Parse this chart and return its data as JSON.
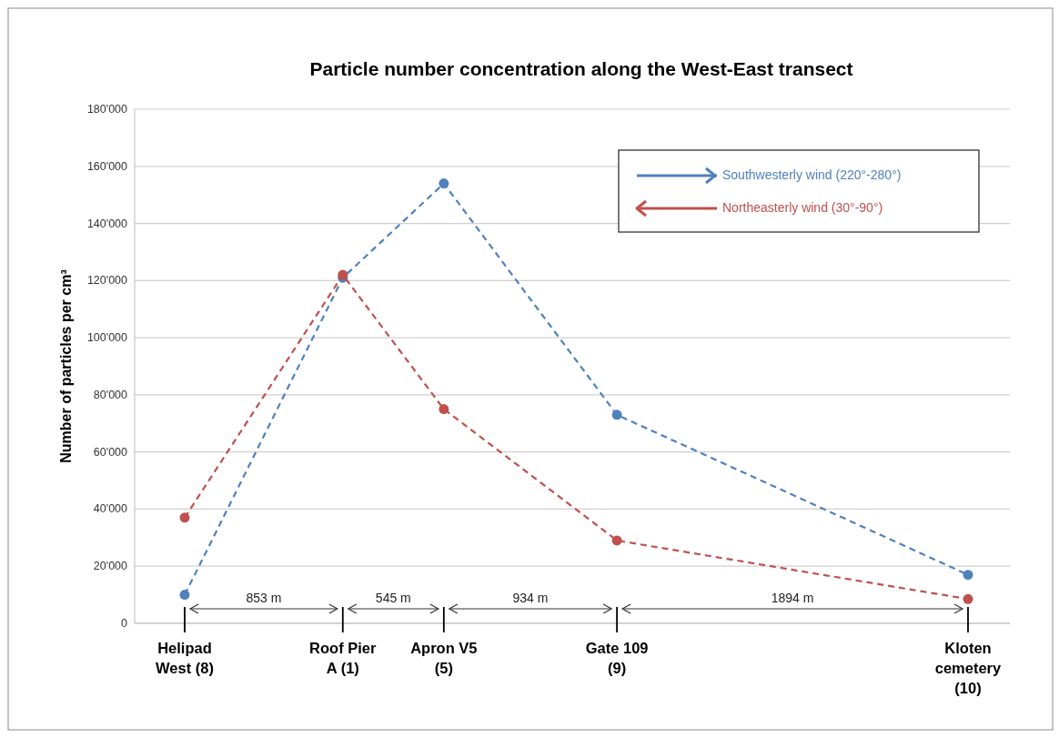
{
  "chart_data": {
    "type": "line",
    "title": "Particle number concentration along the West-East transect",
    "ylabel": "Number of particles per cm³",
    "categories": [
      "Helipad West (8)",
      "Roof Pier A (1)",
      "Apron V5 (5)",
      "Gate 109 (9)",
      "Kloten cemetery (10)"
    ],
    "ylim": [
      0,
      180000
    ],
    "yticks": [
      0,
      {
        "value": 20000,
        "label": "20'000"
      },
      {
        "value": 40000,
        "label": "40'000"
      },
      {
        "value": 60000,
        "label": "60'000"
      },
      {
        "value": 80000,
        "label": "80'000"
      },
      {
        "value": 100000,
        "label": "100'000"
      },
      {
        "value": 120000,
        "label": "120'000"
      },
      {
        "value": 140000,
        "label": "140'000"
      },
      {
        "value": 160000,
        "label": "160'000"
      },
      {
        "value": 180000,
        "label": "180'000"
      }
    ],
    "series": [
      {
        "name": "Southwesterly wind (220°-280°)",
        "color": "#4f81bd",
        "values": [
          10000,
          121000,
          154000,
          73000,
          17000
        ]
      },
      {
        "name": "Northeasterly wind (30°-90°)",
        "color": "#c0504d",
        "values": [
          37000,
          122000,
          75000,
          29000,
          8500
        ]
      }
    ],
    "annotations": [
      "853 m",
      "545 m",
      "934 m",
      "1894 m"
    ],
    "grid": "y",
    "legend": "top right",
    "marker": "circle",
    "line_style": "dashed"
  }
}
